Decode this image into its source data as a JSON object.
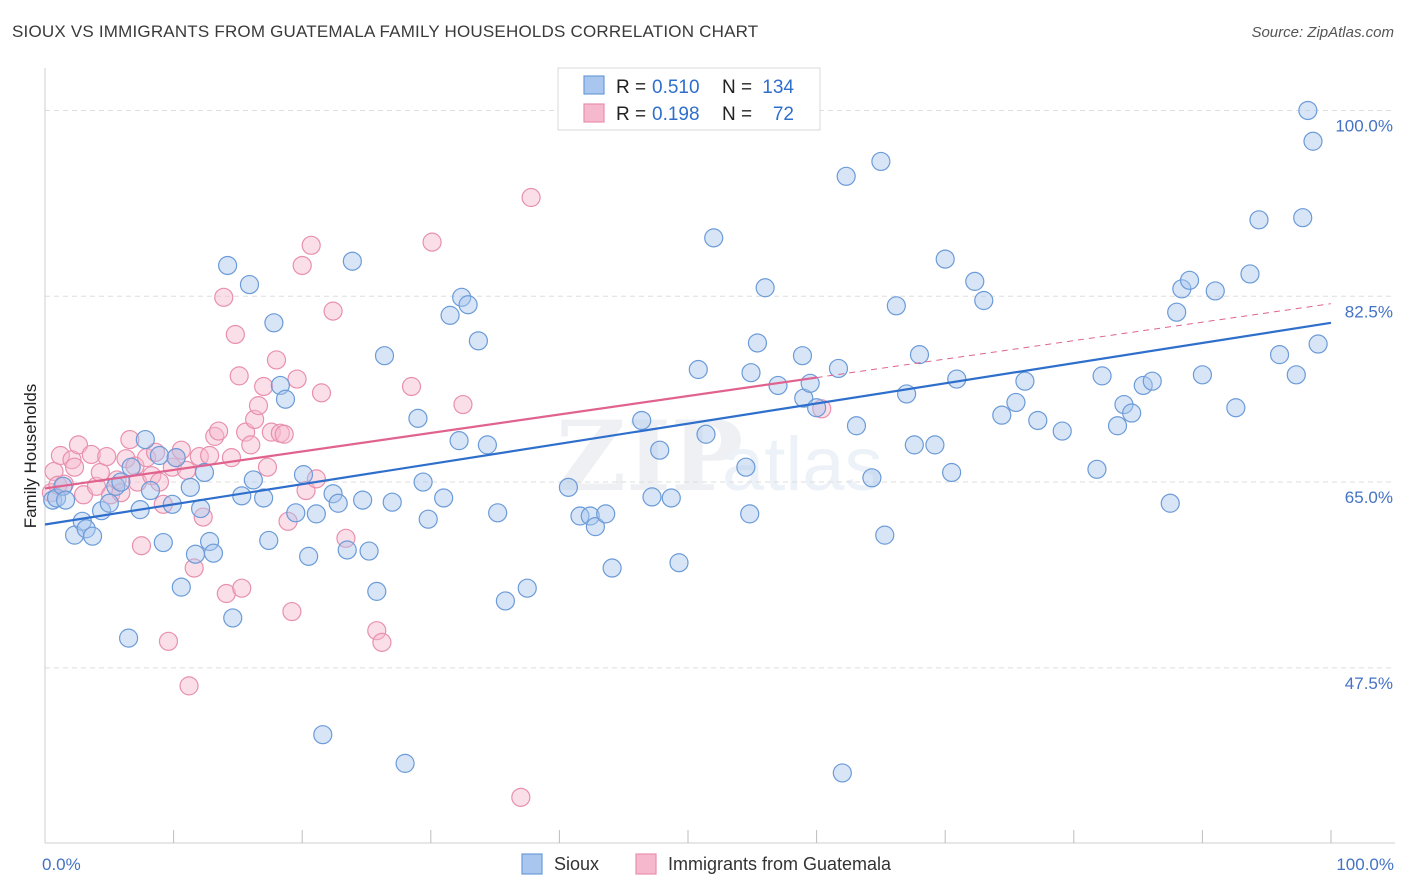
{
  "header": {
    "title": "SIOUX VS IMMIGRANTS FROM GUATEMALA FAMILY HOUSEHOLDS CORRELATION CHART",
    "source": "Source: ZipAtlas.com"
  },
  "watermark": {
    "zip": "ZIP",
    "atlas": "atlas"
  },
  "colors": {
    "sioux_fill": "#a9c6ee",
    "sioux_stroke": "#6b9bd8",
    "sioux_line": "#2f6fcc",
    "guat_fill": "#f6b8cc",
    "guat_stroke": "#e890ad",
    "guat_line": "#e0628f",
    "tick_text": "#4472c4",
    "grid": "#dddddd"
  },
  "chart_data": {
    "type": "scatter",
    "title": "SIOUX VS IMMIGRANTS FROM GUATEMALA FAMILY HOUSEHOLDS CORRELATION CHART",
    "xlabel": "",
    "ylabel": "Family Households",
    "xlim": [
      0,
      100
    ],
    "ylim": [
      31,
      104
    ],
    "x_tick_labels": {
      "min": "0.0%",
      "max": "100.0%"
    },
    "y_ticks": [
      {
        "value": 47.5,
        "label": "47.5%"
      },
      {
        "value": 65.0,
        "label": "65.0%"
      },
      {
        "value": 82.5,
        "label": "82.5%"
      },
      {
        "value": 100.0,
        "label": "100.0%"
      }
    ],
    "legend": [
      {
        "series": "Sioux",
        "r_label": "R =",
        "r_value": "0.510",
        "n_label": "N =",
        "n_value": "134"
      },
      {
        "series": "Immigrants from Guatemala",
        "r_label": "R =",
        "r_value": "0.198",
        "n_label": "N =",
        "n_value": "72"
      }
    ],
    "series": [
      {
        "name": "Sioux",
        "trend": {
          "x0": 0,
          "y0": 61.0,
          "x1": 100,
          "y1": 80.0,
          "dashed_from": null
        },
        "points": [
          [
            0.6,
            63.3
          ],
          [
            0.9,
            63.5
          ],
          [
            1.4,
            64.6
          ],
          [
            1.6,
            63.3
          ],
          [
            2.3,
            60.0
          ],
          [
            2.9,
            61.3
          ],
          [
            3.2,
            60.6
          ],
          [
            3.7,
            59.9
          ],
          [
            4.4,
            62.3
          ],
          [
            5.0,
            63.0
          ],
          [
            5.5,
            64.6
          ],
          [
            5.9,
            65.0
          ],
          [
            6.5,
            50.3
          ],
          [
            6.7,
            66.4
          ],
          [
            7.4,
            62.4
          ],
          [
            7.8,
            69.0
          ],
          [
            8.2,
            64.2
          ],
          [
            8.9,
            67.5
          ],
          [
            9.2,
            59.3
          ],
          [
            9.9,
            62.9
          ],
          [
            10.2,
            67.3
          ],
          [
            10.6,
            55.1
          ],
          [
            11.3,
            64.5
          ],
          [
            11.7,
            58.2
          ],
          [
            12.1,
            62.5
          ],
          [
            12.4,
            65.9
          ],
          [
            12.8,
            59.4
          ],
          [
            13.1,
            58.3
          ],
          [
            14.2,
            85.4
          ],
          [
            14.6,
            52.2
          ],
          [
            15.3,
            63.7
          ],
          [
            15.9,
            83.6
          ],
          [
            16.2,
            65.2
          ],
          [
            17.0,
            63.5
          ],
          [
            17.4,
            59.5
          ],
          [
            17.8,
            80.0
          ],
          [
            18.3,
            74.1
          ],
          [
            18.7,
            72.8
          ],
          [
            19.5,
            62.1
          ],
          [
            20.1,
            65.7
          ],
          [
            20.5,
            58.0
          ],
          [
            21.1,
            62.0
          ],
          [
            21.6,
            41.2
          ],
          [
            22.4,
            63.9
          ],
          [
            22.8,
            63.0
          ],
          [
            23.5,
            58.6
          ],
          [
            23.9,
            85.8
          ],
          [
            24.7,
            63.3
          ],
          [
            25.2,
            58.5
          ],
          [
            25.8,
            54.7
          ],
          [
            26.4,
            76.9
          ],
          [
            27.0,
            63.1
          ],
          [
            28.0,
            38.5
          ],
          [
            29.0,
            71.0
          ],
          [
            29.4,
            65.0
          ],
          [
            29.8,
            61.5
          ],
          [
            31.0,
            63.5
          ],
          [
            31.5,
            80.7
          ],
          [
            32.2,
            68.9
          ],
          [
            32.4,
            82.4
          ],
          [
            32.9,
            81.7
          ],
          [
            33.7,
            78.3
          ],
          [
            34.4,
            68.5
          ],
          [
            35.2,
            62.1
          ],
          [
            35.8,
            53.8
          ],
          [
            37.5,
            55.0
          ],
          [
            40.7,
            64.5
          ],
          [
            41.6,
            61.8
          ],
          [
            42.4,
            61.8
          ],
          [
            42.8,
            60.8
          ],
          [
            43.6,
            62.0
          ],
          [
            44.1,
            56.9
          ],
          [
            46.4,
            70.8
          ],
          [
            47.2,
            63.6
          ],
          [
            47.8,
            68.0
          ],
          [
            48.7,
            63.5
          ],
          [
            49.3,
            57.4
          ],
          [
            50.8,
            75.6
          ],
          [
            51.4,
            69.5
          ],
          [
            52.0,
            88.0
          ],
          [
            54.5,
            66.4
          ],
          [
            54.8,
            62.0
          ],
          [
            54.9,
            75.3
          ],
          [
            55.4,
            78.1
          ],
          [
            56.0,
            83.3
          ],
          [
            57.0,
            74.1
          ],
          [
            58.9,
            76.9
          ],
          [
            59.0,
            72.9
          ],
          [
            59.5,
            74.3
          ],
          [
            60.0,
            72.0
          ],
          [
            61.7,
            75.7
          ],
          [
            62.0,
            37.6
          ],
          [
            62.3,
            93.8
          ],
          [
            63.1,
            70.3
          ],
          [
            64.3,
            65.4
          ],
          [
            65.0,
            95.2
          ],
          [
            65.3,
            60.0
          ],
          [
            66.2,
            81.6
          ],
          [
            67.0,
            73.3
          ],
          [
            67.6,
            68.5
          ],
          [
            68.0,
            77.0
          ],
          [
            69.2,
            68.5
          ],
          [
            70.0,
            86.0
          ],
          [
            70.5,
            65.9
          ],
          [
            70.9,
            74.7
          ],
          [
            72.3,
            83.9
          ],
          [
            73.0,
            82.1
          ],
          [
            74.4,
            71.3
          ],
          [
            75.5,
            72.5
          ],
          [
            76.2,
            74.5
          ],
          [
            77.2,
            70.8
          ],
          [
            79.1,
            69.8
          ],
          [
            81.8,
            66.2
          ],
          [
            82.2,
            75.0
          ],
          [
            83.4,
            70.3
          ],
          [
            83.9,
            72.3
          ],
          [
            84.5,
            71.5
          ],
          [
            85.4,
            74.1
          ],
          [
            86.1,
            74.5
          ],
          [
            87.5,
            63.0
          ],
          [
            88.0,
            81.0
          ],
          [
            88.4,
            83.2
          ],
          [
            89.0,
            84.0
          ],
          [
            90.0,
            75.1
          ],
          [
            91.0,
            83.0
          ],
          [
            92.6,
            72.0
          ],
          [
            93.7,
            84.6
          ],
          [
            94.4,
            89.7
          ],
          [
            96.0,
            77.0
          ],
          [
            97.3,
            75.1
          ],
          [
            97.8,
            89.9
          ],
          [
            98.2,
            100.0
          ],
          [
            98.6,
            97.1
          ],
          [
            99.0,
            78.0
          ]
        ]
      },
      {
        "name": "Immigrants from Guatemala",
        "trend": {
          "x0": 0,
          "y0": 64.4,
          "x1": 100,
          "y1": 81.8,
          "solid_until": 60.0
        },
        "points": [
          [
            0.5,
            64.0
          ],
          [
            0.7,
            66.0
          ],
          [
            1.0,
            64.7
          ],
          [
            1.2,
            67.5
          ],
          [
            1.5,
            64.8
          ],
          [
            2.1,
            67.1
          ],
          [
            2.3,
            66.4
          ],
          [
            2.6,
            68.5
          ],
          [
            3.0,
            63.8
          ],
          [
            3.6,
            67.6
          ],
          [
            4.0,
            64.6
          ],
          [
            4.3,
            65.9
          ],
          [
            4.8,
            67.4
          ],
          [
            5.1,
            63.8
          ],
          [
            5.6,
            65.2
          ],
          [
            5.9,
            64.0
          ],
          [
            6.3,
            67.2
          ],
          [
            6.6,
            69.0
          ],
          [
            7.0,
            66.5
          ],
          [
            7.2,
            65.0
          ],
          [
            7.5,
            59.0
          ],
          [
            7.9,
            67.3
          ],
          [
            8.3,
            65.6
          ],
          [
            8.6,
            67.8
          ],
          [
            8.9,
            65.0
          ],
          [
            9.2,
            62.9
          ],
          [
            9.6,
            50.0
          ],
          [
            9.9,
            66.4
          ],
          [
            10.2,
            67.3
          ],
          [
            10.6,
            68.0
          ],
          [
            11.0,
            66.1
          ],
          [
            11.2,
            45.8
          ],
          [
            11.6,
            56.9
          ],
          [
            12.0,
            67.4
          ],
          [
            12.3,
            61.7
          ],
          [
            12.8,
            67.5
          ],
          [
            13.2,
            69.3
          ],
          [
            13.5,
            69.8
          ],
          [
            13.9,
            82.4
          ],
          [
            14.1,
            54.5
          ],
          [
            14.5,
            67.3
          ],
          [
            14.8,
            78.9
          ],
          [
            15.1,
            75.0
          ],
          [
            15.3,
            55.0
          ],
          [
            15.6,
            69.7
          ],
          [
            16.0,
            68.5
          ],
          [
            16.3,
            70.9
          ],
          [
            16.6,
            72.2
          ],
          [
            17.0,
            74.0
          ],
          [
            17.3,
            66.4
          ],
          [
            17.6,
            69.7
          ],
          [
            18.0,
            76.5
          ],
          [
            18.3,
            69.6
          ],
          [
            18.6,
            69.5
          ],
          [
            18.9,
            61.3
          ],
          [
            19.2,
            52.8
          ],
          [
            19.6,
            74.7
          ],
          [
            20.0,
            85.4
          ],
          [
            20.3,
            64.2
          ],
          [
            20.7,
            87.3
          ],
          [
            21.1,
            65.3
          ],
          [
            21.5,
            73.4
          ],
          [
            22.4,
            81.1
          ],
          [
            23.4,
            59.7
          ],
          [
            25.8,
            51.0
          ],
          [
            26.2,
            49.9
          ],
          [
            28.5,
            74.0
          ],
          [
            30.1,
            87.6
          ],
          [
            32.5,
            72.3
          ],
          [
            37.0,
            35.3
          ],
          [
            37.8,
            91.8
          ],
          [
            60.4,
            71.9
          ]
        ]
      }
    ],
    "bottom_legend": [
      "Sioux",
      "Immigrants from Guatemala"
    ]
  }
}
